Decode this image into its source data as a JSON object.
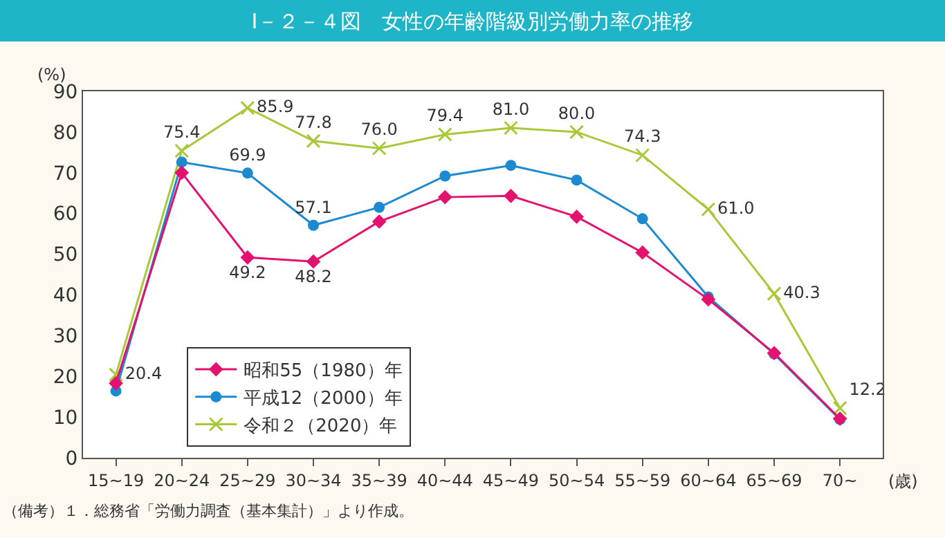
{
  "chart_data": {
    "type": "line",
    "title": "Ⅰ－２－４図　女性の年齢階級別労働力率の推移",
    "ylabel": "(%)",
    "xlabel": "(歳)",
    "categories": [
      "15~19",
      "20~24",
      "25~29",
      "30~34",
      "35~39",
      "40~44",
      "45~49",
      "50~54",
      "55~59",
      "60~64",
      "65~69",
      "70~"
    ],
    "series": [
      {
        "name": "昭和55（1980）年",
        "color": "#e4126f",
        "marker": "diamond",
        "values": [
          18.3,
          70.0,
          49.2,
          48.2,
          58.0,
          64.0,
          64.3,
          59.2,
          50.4,
          38.9,
          25.7,
          9.6
        ],
        "value_labels": [
          null,
          null,
          "49.2",
          "48.2",
          null,
          null,
          null,
          null,
          null,
          null,
          null,
          null
        ]
      },
      {
        "name": "平成12（2000）年",
        "color": "#1c8ad0",
        "marker": "circle",
        "values": [
          16.4,
          72.6,
          69.9,
          57.1,
          61.5,
          69.2,
          71.8,
          68.2,
          58.7,
          39.5,
          25.5,
          9.4
        ],
        "value_labels": [
          null,
          null,
          "69.9",
          "57.1",
          null,
          null,
          null,
          null,
          null,
          null,
          null,
          null
        ]
      },
      {
        "name": "令和２（2020）年",
        "color": "#a8c83a",
        "marker": "cross",
        "values": [
          20.4,
          75.4,
          85.9,
          77.8,
          76.0,
          79.4,
          81.0,
          80.0,
          74.3,
          61.0,
          40.3,
          12.2
        ],
        "value_labels": [
          "20.4",
          "75.4",
          "85.9",
          "77.8",
          "76.0",
          "79.4",
          "81.0",
          "80.0",
          "74.3",
          "61.0",
          "40.3",
          "12.2"
        ]
      }
    ],
    "ylim": [
      0,
      90
    ],
    "yticks": [
      0,
      10,
      20,
      30,
      40,
      50,
      60,
      70,
      80,
      90
    ],
    "legend": "bottom left",
    "line_style": "solid",
    "annotations": [
      "（備考）１．総務省「労働力調査（基本集計）」より作成。"
    ]
  }
}
